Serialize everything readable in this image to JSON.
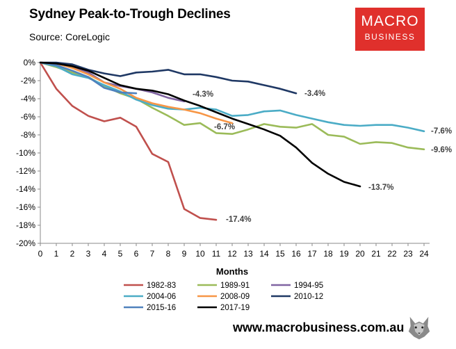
{
  "header": {
    "title": "Sydney Peak-to-Trough Declines",
    "subtitle": "Source: CoreLogic"
  },
  "logo": {
    "line1": "MACRO",
    "line2": "BUSINESS"
  },
  "footer": {
    "website": "www.macrobusiness.com.au",
    "mascot": "wolf-icon"
  },
  "chart_data": {
    "type": "line",
    "xlabel": "Months",
    "ylabel": "",
    "xlim": [
      0,
      24
    ],
    "ylim": [
      -20,
      0
    ],
    "x_ticks": [
      0,
      1,
      2,
      3,
      4,
      5,
      6,
      7,
      8,
      9,
      10,
      11,
      12,
      13,
      14,
      15,
      16,
      17,
      18,
      19,
      20,
      21,
      22,
      23,
      24
    ],
    "y_ticks": [
      0,
      -2,
      -4,
      -6,
      -8,
      -10,
      -12,
      -14,
      -16,
      -18,
      -20
    ],
    "y_tick_labels": [
      "0%",
      "-2%",
      "-4%",
      "-6%",
      "-8%",
      "-10%",
      "-12%",
      "-14%",
      "-16%",
      "-18%",
      "-20%"
    ],
    "grid": false,
    "legend_position": "bottom",
    "series": [
      {
        "name": "1982-83",
        "color": "#c0504d",
        "values": [
          0,
          -2.9,
          -4.8,
          -5.9,
          -6.5,
          -6.1,
          -7.1,
          -10.1,
          -11.0,
          -16.2,
          -17.2,
          -17.4
        ],
        "end_label": "-17.4%"
      },
      {
        "name": "1989-91",
        "color": "#9bbb59",
        "values": [
          0,
          -0.5,
          -1.1,
          -1.6,
          -2.6,
          -3.4,
          -4.0,
          -5.0,
          -5.9,
          -6.9,
          -6.7,
          -7.8,
          -7.9,
          -7.4,
          -6.8,
          -7.1,
          -7.2,
          -6.8,
          -8.0,
          -8.2,
          -9.0,
          -8.8,
          -8.9,
          -9.4,
          -9.6
        ],
        "end_label": "-9.6%"
      },
      {
        "name": "1994-95",
        "color": "#8064a2",
        "values": [
          0,
          -0.1,
          -0.5,
          -1.1,
          -2.2,
          -2.6,
          -2.9,
          -3.3,
          -3.9,
          -4.3
        ],
        "end_label": "-4.3%"
      },
      {
        "name": "2004-06",
        "color": "#4bacc6",
        "values": [
          0,
          -0.4,
          -1.3,
          -1.7,
          -2.5,
          -3.2,
          -4.1,
          -4.7,
          -5.1,
          -5.2,
          -5.0,
          -5.2,
          -5.9,
          -5.8,
          -5.4,
          -5.3,
          -5.8,
          -6.2,
          -6.6,
          -6.9,
          -7.0,
          -6.9,
          -6.9,
          -7.2,
          -7.6
        ],
        "end_label": "-7.6%"
      },
      {
        "name": "2008-09",
        "color": "#f79646",
        "values": [
          0,
          -0.1,
          -0.6,
          -1.3,
          -2.2,
          -2.9,
          -3.9,
          -4.5,
          -4.9,
          -5.2,
          -5.6,
          -6.2,
          -6.7
        ],
        "end_label": "-6.7%"
      },
      {
        "name": "2010-12",
        "color": "#1f3864",
        "values": [
          0,
          0,
          -0.2,
          -0.8,
          -1.2,
          -1.5,
          -1.1,
          -1.0,
          -0.8,
          -1.3,
          -1.3,
          -1.6,
          -2.0,
          -2.1,
          -2.5,
          -2.9,
          -3.4
        ],
        "end_label": "-3.4%"
      },
      {
        "name": "2015-16",
        "color": "#4f81bd",
        "values": [
          0,
          -0.3,
          -0.9,
          -1.6,
          -2.8,
          -3.3,
          -3.4
        ],
        "end_label": ""
      },
      {
        "name": "2017-19",
        "color": "#000000",
        "values": [
          0,
          -0.1,
          -0.4,
          -0.9,
          -1.7,
          -2.5,
          -2.9,
          -3.1,
          -3.5,
          -4.2,
          -4.8,
          -5.5,
          -6.2,
          -6.8,
          -7.4,
          -8.1,
          -9.4,
          -11.1,
          -12.3,
          -13.2,
          -13.7
        ],
        "end_label": "-13.7%"
      }
    ]
  }
}
